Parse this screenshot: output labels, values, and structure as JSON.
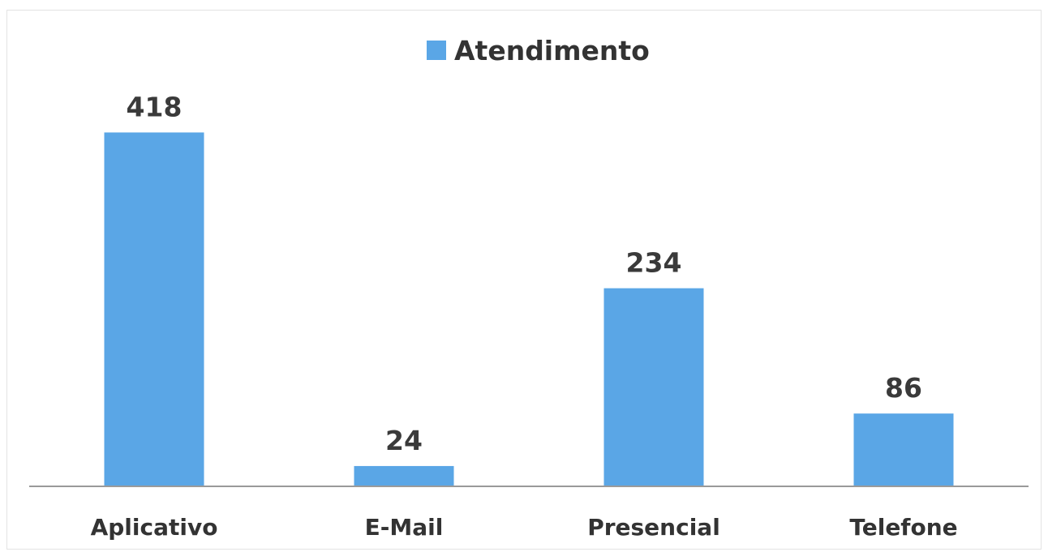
{
  "chart_data": {
    "type": "bar",
    "categories": [
      "Aplicativo",
      "E-Mail",
      "Presencial",
      "Telefone"
    ],
    "series": [
      {
        "name": "Atendimento",
        "values": [
          418,
          24,
          234,
          86
        ],
        "color": "#5aa6e6"
      }
    ],
    "data_labels": [
      "418",
      "24",
      "234",
      "86"
    ],
    "legend": {
      "label": "Atendimento",
      "position": "top-center"
    },
    "ylim": [
      0,
      450
    ],
    "grid": false,
    "xlabel": "",
    "ylabel": "",
    "title": "",
    "axis_color": "#9a9a9a"
  }
}
